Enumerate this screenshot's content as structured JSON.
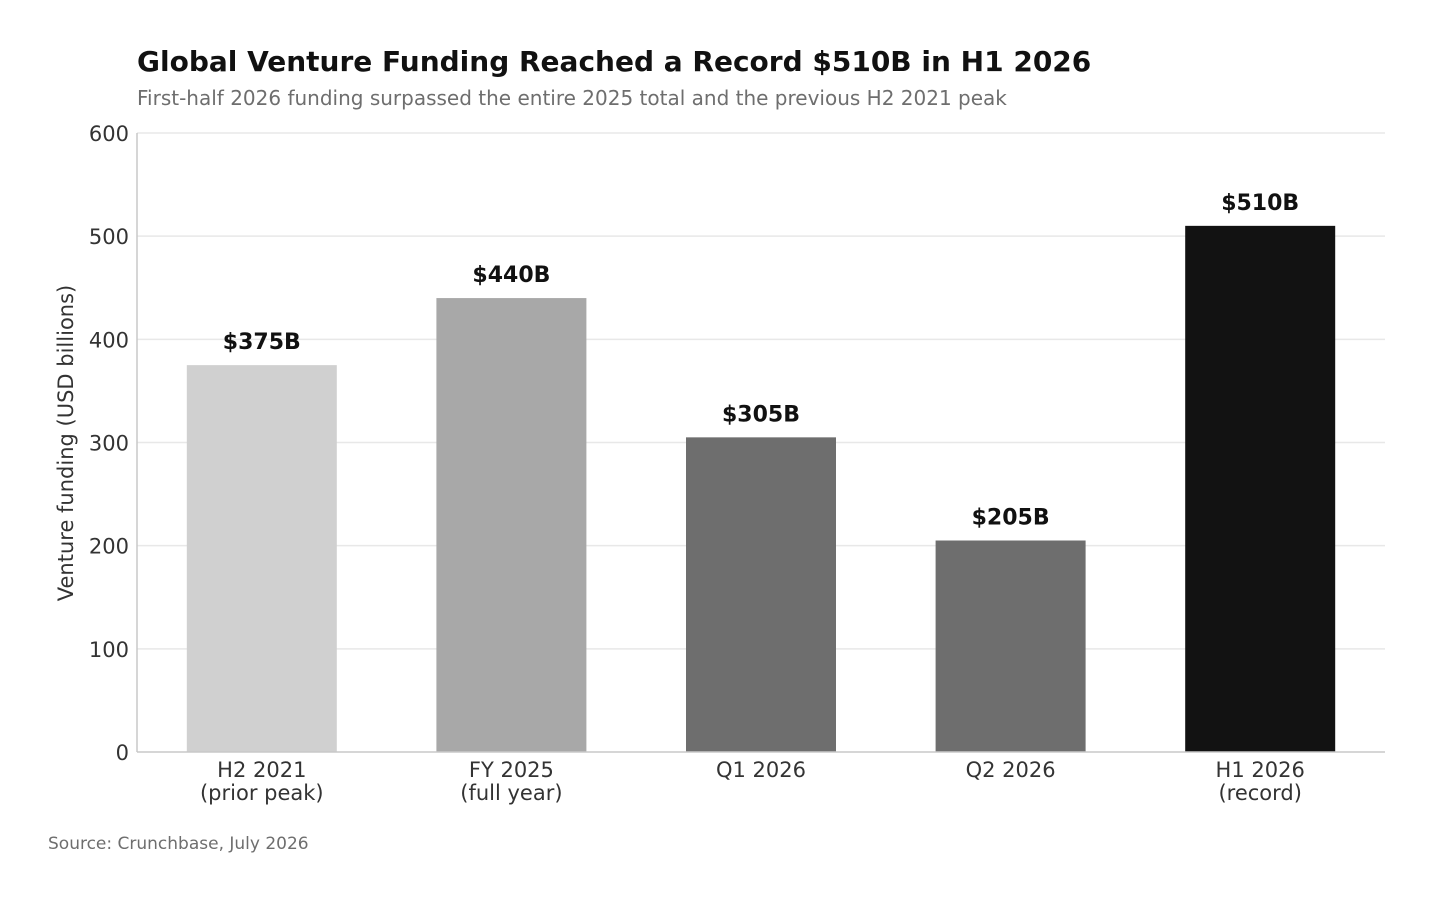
{
  "chart_data": {
    "type": "bar",
    "title": "Global Venture Funding Reached a Record $510B in H1 2026",
    "subtitle": "First-half 2026 funding surpassed the entire 2025 total and the previous H2 2021 peak",
    "ylabel": "Venture funding (USD billions)",
    "xlabel": "",
    "ylim": [
      0,
      600
    ],
    "yticks": [
      0,
      100,
      200,
      300,
      400,
      500,
      600
    ],
    "grid": true,
    "categories": [
      {
        "line1": "H2 2021",
        "line2": "(prior peak)"
      },
      {
        "line1": "FY 2025",
        "line2": "(full year)"
      },
      {
        "line1": "Q1 2026",
        "line2": ""
      },
      {
        "line1": "Q2 2026",
        "line2": ""
      },
      {
        "line1": "H1 2026",
        "line2": "(record)"
      }
    ],
    "values": [
      375,
      440,
      305,
      205,
      510
    ],
    "data_labels": [
      "$375B",
      "$440B",
      "$305B",
      "$205B",
      "$510B"
    ],
    "colors": [
      "#d0d0d0",
      "#a8a8a8",
      "#6e6e6e",
      "#6e6e6e",
      "#121212"
    ],
    "source": "Source: Crunchbase, July 2026"
  }
}
